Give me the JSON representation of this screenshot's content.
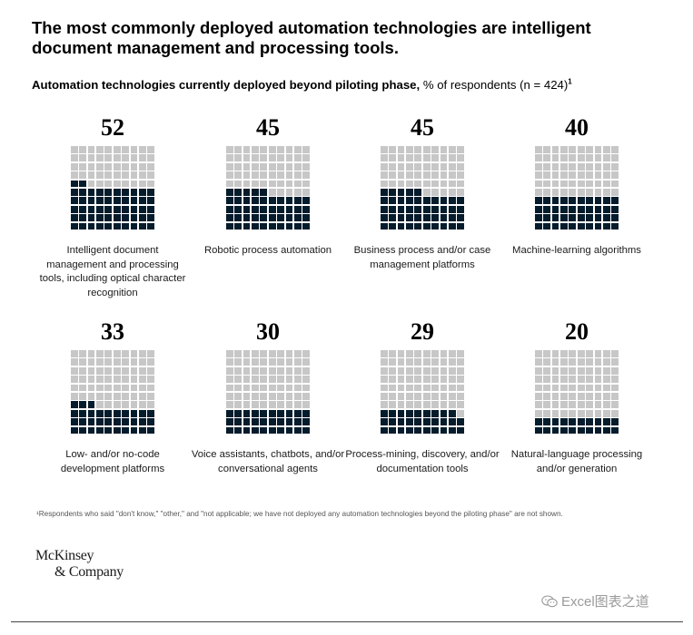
{
  "title": "The most commonly deployed automation technologies are intelligent document management and processing tools.",
  "subtitle": {
    "bold": "Automation technologies currently deployed beyond piloting phase,",
    "regular": " % of respondents (n = 424)",
    "footnote_marker": "1"
  },
  "chart_data": {
    "type": "waffle",
    "grid": {
      "columns": 10,
      "rows": 10,
      "units_per_cell": 1,
      "fill_direction": "bottom-up"
    },
    "colors": {
      "filled": "#051c2c",
      "empty": "#c7c7c7"
    },
    "items": [
      {
        "value": 52,
        "label": "Intelligent document management and processing tools, including optical character recognition"
      },
      {
        "value": 45,
        "label": "Robotic process automation"
      },
      {
        "value": 45,
        "label": "Business process and/or case management platforms"
      },
      {
        "value": 40,
        "label": "Machine-learning algorithms"
      },
      {
        "value": 33,
        "label": "Low- and/or no-code development platforms"
      },
      {
        "value": 30,
        "label": "Voice assistants, chatbots, and/or conversational agents"
      },
      {
        "value": 29,
        "label": "Process-mining, discovery, and/or documentation tools"
      },
      {
        "value": 20,
        "label": "Natural-language processing and/or generation"
      }
    ]
  },
  "footnote": "¹Respondents who said \"don't know,\" \"other,\" and \"not applicable; we have not deployed any automation technologies beyond the piloting phase\" are not shown.",
  "logo": {
    "line1": "McKinsey",
    "line2": "& Company"
  },
  "watermark": {
    "text": "Excel图表之道",
    "icon": "wechat-icon"
  }
}
